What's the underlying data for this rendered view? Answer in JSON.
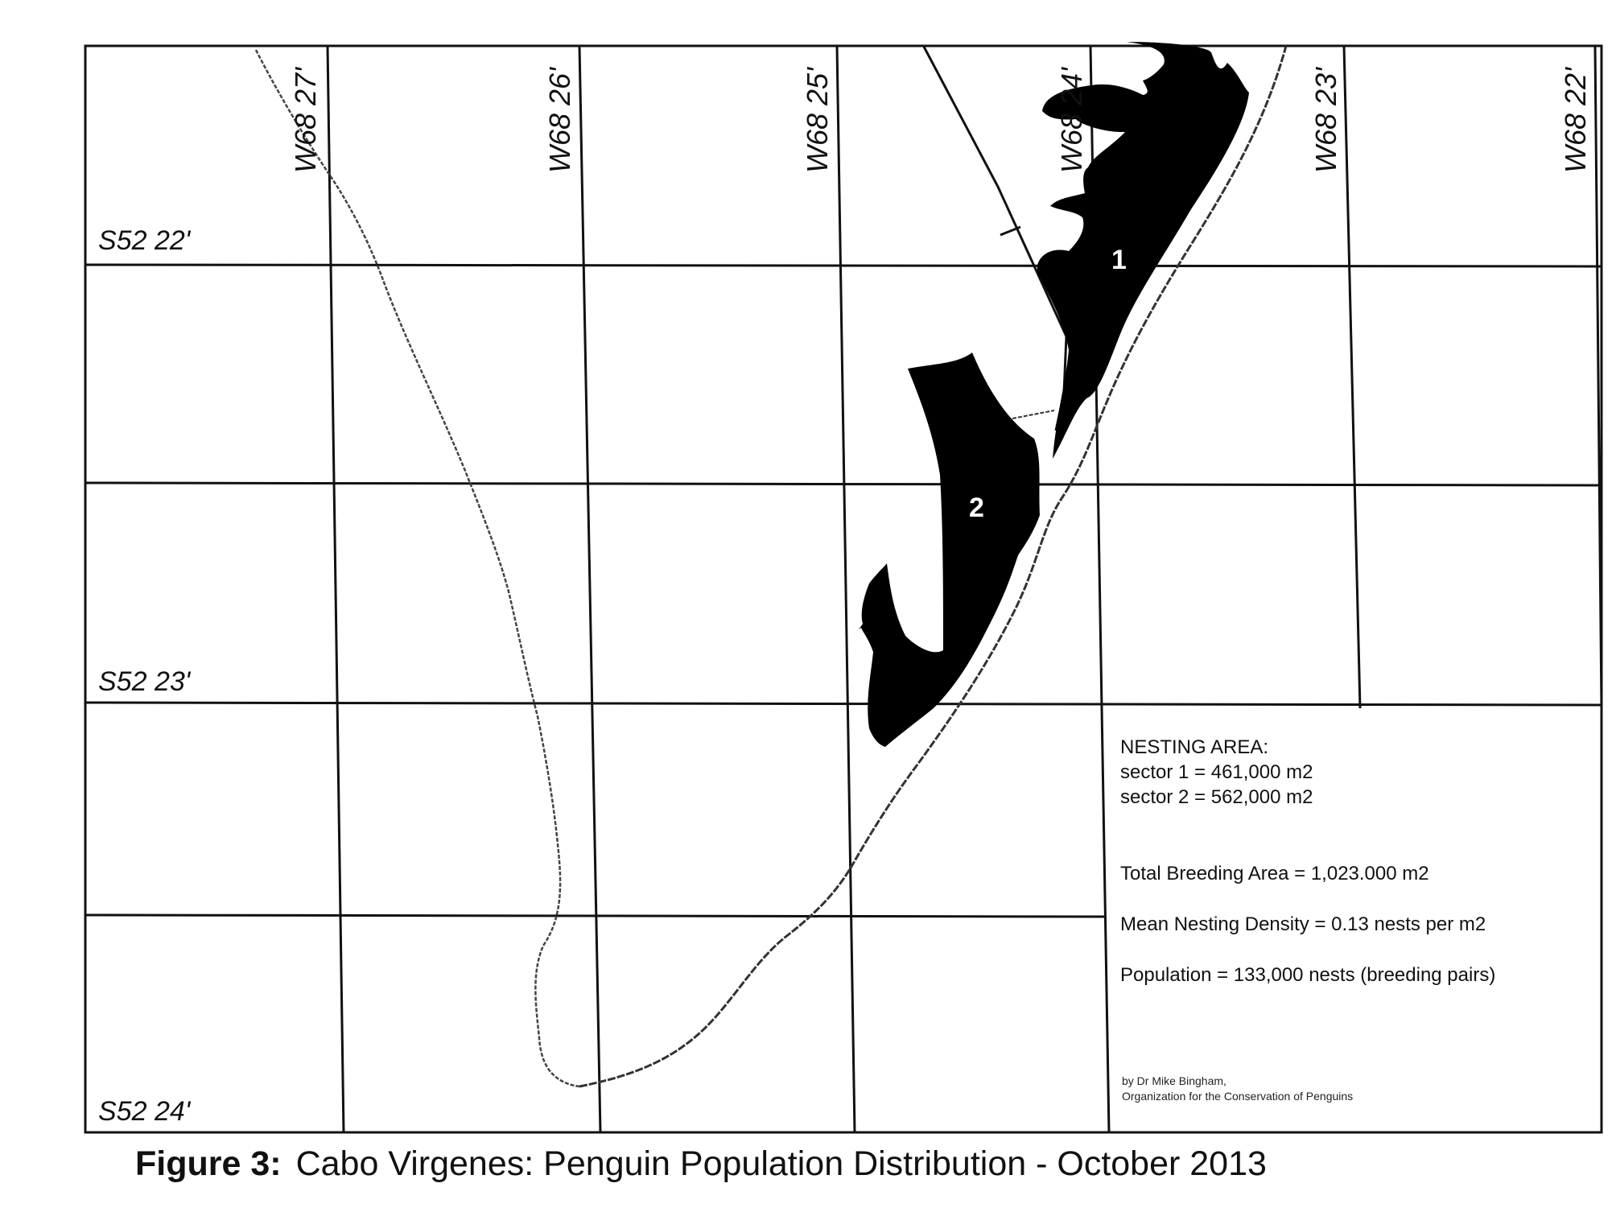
{
  "map": {
    "longitude_labels": [
      "W68 27'",
      "W68 26'",
      "W68 25'",
      "W68 24'",
      "W68 23'",
      "W68 22'"
    ],
    "latitude_labels": [
      "S52 22'",
      "S52 23'",
      "S52 24'"
    ],
    "sectors": [
      {
        "label": "1",
        "fill": "#000000"
      },
      {
        "label": "2",
        "fill": "#000000"
      }
    ],
    "colors": {
      "grid": "#111111",
      "coastline": "#333333",
      "nesting_area": "#000000",
      "background": "#ffffff"
    }
  },
  "legend": {
    "heading": "NESTING AREA:",
    "sector1": "sector 1 = 461,000 m2",
    "sector2": "sector 2 = 562,000 m2",
    "total": "Total Breeding Area = 1,023.000 m2",
    "density": "Mean Nesting Density = 0.13 nests per m2",
    "population": "Population = 133,000 nests (breeding pairs)"
  },
  "credit": {
    "line1": "by  Dr Mike Bingham,",
    "line2": "Organization for the Conservation of Penguins"
  },
  "caption": {
    "label": "Figure 3:",
    "text": "Cabo Virgenes: Penguin Population Distribution - October 2013"
  }
}
